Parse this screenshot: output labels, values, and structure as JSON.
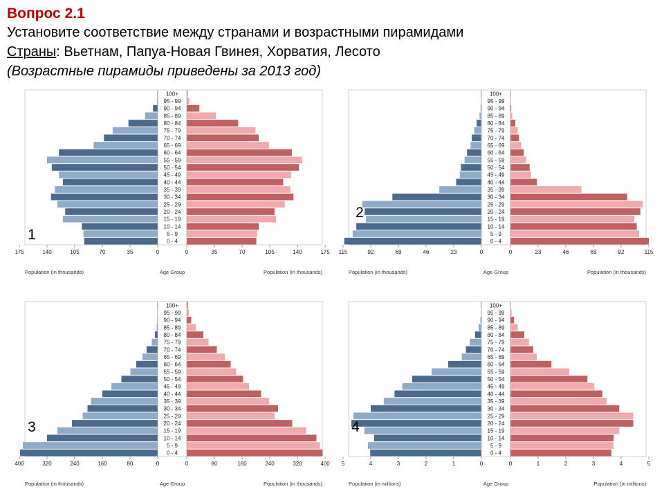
{
  "header": {
    "title": "Вопрос  2.1",
    "instruction": "Установите соответствие между странами и возрастными пирамидами",
    "countries_label": "Страны",
    "countries_sep": ": ",
    "countries_list": "Вьетнам, Папуа-Новая Гвинея, Хорватия, Лесото",
    "note": "(Возрастные пирамиды приведены за 2013 год)"
  },
  "colors": {
    "male_dark": "#4a6a8e",
    "male_light": "#8eabc8",
    "female_dark": "#c06060",
    "female_light": "#f0aaac"
  },
  "chart_data": [
    {
      "type": "bar",
      "number": "1",
      "age_groups": [
        "0 - 4",
        "5 - 9",
        "10 - 14",
        "15 - 19",
        "20 - 24",
        "25 - 29",
        "30 - 34",
        "35 - 39",
        "40 - 44",
        "45 - 49",
        "50 - 54",
        "55 - 59",
        "60 - 64",
        "65 - 69",
        "70 - 74",
        "75 - 79",
        "80 - 84",
        "85 - 89",
        "90 - 94",
        "95 - 99",
        "100+"
      ],
      "male": [
        93,
        94,
        96,
        120,
        117,
        127,
        135,
        130,
        120,
        125,
        134,
        140,
        125,
        81,
        68,
        57,
        37,
        16,
        6,
        1,
        0
      ],
      "female": [
        88,
        89,
        91,
        113,
        111,
        124,
        135,
        131,
        122,
        132,
        142,
        146,
        133,
        104,
        91,
        87,
        65,
        37,
        16,
        3,
        1
      ],
      "ticks": [
        "175",
        "140",
        "105",
        "70",
        "35",
        "0",
        "35",
        "70",
        "105",
        "140",
        "175"
      ],
      "xmax": 175,
      "age_title": "Age Group",
      "xlabel_left": "Population (in thousands)",
      "xlabel_right": "Population (in thousands)"
    },
    {
      "type": "bar",
      "number": "2",
      "age_groups": [
        "0 - 4",
        "5 - 9",
        "10 - 14",
        "15 - 19",
        "20 - 24",
        "25 - 29",
        "30 - 34",
        "35 - 39",
        "40 - 44",
        "45 - 49",
        "50 - 54",
        "55 - 59",
        "60 - 64",
        "65 - 69",
        "70 - 74",
        "75 - 79",
        "80 - 84",
        "85 - 89",
        "90 - 94",
        "95 - 99",
        "100+"
      ],
      "male": [
        114,
        107,
        104,
        96,
        97,
        99,
        74,
        35,
        21,
        18,
        17,
        14,
        12,
        9,
        8,
        6,
        4,
        1.5,
        0.6,
        0.2,
        0.1
      ],
      "female": [
        115,
        107,
        105,
        103,
        108,
        110,
        97,
        59,
        22,
        17,
        16,
        13,
        11,
        9,
        7,
        6,
        4,
        1.5,
        0.6,
        0.2,
        0.1
      ],
      "ticks": [
        "115",
        "92",
        "69",
        "46",
        "23",
        "0",
        "0",
        "23",
        "46",
        "69",
        "92",
        "115"
      ],
      "xmax": 115,
      "age_title": "Age Group",
      "xlabel_left": "Population (in thousands)",
      "xlabel_right": "Population (in thousands)"
    },
    {
      "type": "bar",
      "number": "3",
      "age_groups": [
        "0 - 4",
        "5 - 9",
        "10 - 14",
        "15 - 19",
        "20 - 24",
        "25 - 29",
        "30 - 34",
        "35 - 39",
        "40 - 44",
        "45 - 49",
        "50 - 54",
        "55 - 59",
        "60 - 64",
        "65 - 69",
        "70 - 74",
        "75 - 79",
        "80 - 84",
        "85 - 89",
        "90 - 94",
        "95 - 99",
        "100+"
      ],
      "male": [
        398,
        390,
        320,
        290,
        248,
        217,
        203,
        193,
        160,
        134,
        105,
        79,
        62,
        44,
        32,
        17,
        8,
        3,
        1,
        0.5,
        0.2
      ],
      "female": [
        393,
        385,
        375,
        345,
        305,
        254,
        264,
        238,
        215,
        180,
        163,
        143,
        127,
        110,
        87,
        63,
        48,
        26,
        13,
        6,
        3
      ],
      "ticks": [
        "400",
        "320",
        "240",
        "160",
        "80",
        "0",
        "0",
        "80",
        "160",
        "240",
        "320",
        "400"
      ],
      "xmax": 400,
      "age_title": "Age Group",
      "xlabel_left": "Population (in thousands)",
      "xlabel_right": "Population (in thousands)"
    },
    {
      "type": "bar",
      "number": "4",
      "age_groups": [
        "0 - 4",
        "5 - 9",
        "10 - 14",
        "15 - 19",
        "20 - 24",
        "25 - 29",
        "30 - 34",
        "35 - 39",
        "40 - 44",
        "45 - 49",
        "50 - 54",
        "55 - 59",
        "60 - 64",
        "65 - 69",
        "70 - 74",
        "75 - 79",
        "80 - 84",
        "85 - 89",
        "90 - 94",
        "95 - 99",
        "100+"
      ],
      "male": [
        4.02,
        4.1,
        3.88,
        4.23,
        4.7,
        4.62,
        4.0,
        3.53,
        3.14,
        2.86,
        2.5,
        1.8,
        1.2,
        0.71,
        0.56,
        0.42,
        0.23,
        0.1,
        0.03,
        0.01,
        0
      ],
      "female": [
        3.65,
        3.72,
        3.73,
        3.93,
        4.44,
        4.44,
        3.93,
        3.47,
        3.32,
        3.03,
        2.78,
        2.12,
        1.48,
        0.95,
        0.82,
        0.67,
        0.5,
        0.26,
        0.13,
        0.04,
        0.01
      ],
      "ticks": [
        "5",
        "4",
        "3",
        "2",
        "1",
        "0",
        "0",
        "1",
        "2",
        "3",
        "4",
        "5"
      ],
      "xmax": 5,
      "age_title": "Age Group",
      "xlabel_left": "Population (in millions)",
      "xlabel_right": "Population (in millions)"
    }
  ]
}
